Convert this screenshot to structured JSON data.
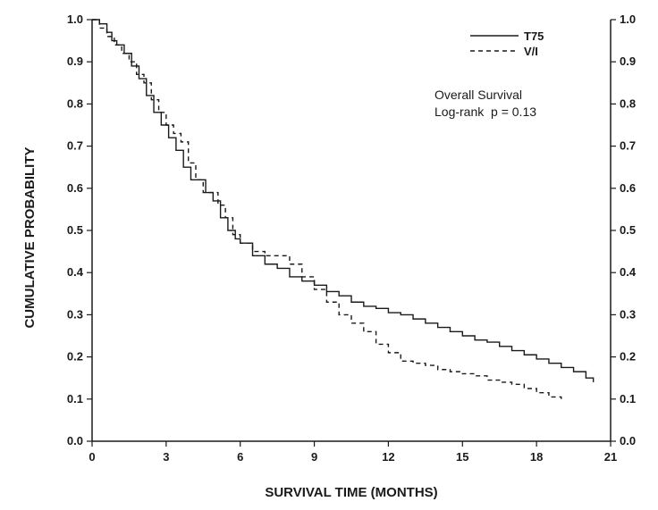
{
  "chart_data": {
    "type": "line",
    "title": "",
    "xlabel": "SURVIVAL TIME (MONTHS)",
    "ylabel": "CUMULATIVE PROBABILITY",
    "xlim": [
      0,
      21
    ],
    "ylim": [
      0,
      1.0
    ],
    "xticks": [
      "0",
      "3",
      "6",
      "9",
      "12",
      "15",
      "18",
      "21"
    ],
    "yticks": [
      "0.0",
      "0.1",
      "0.2",
      "0.3",
      "0.4",
      "0.5",
      "0.6",
      "0.7",
      "0.8",
      "0.9",
      "1.0"
    ],
    "grid": false,
    "legend_position": "top-right",
    "annotations": [
      "Overall Survival",
      "Log-rank  p = 0.13"
    ],
    "series": [
      {
        "name": "T75",
        "style": "solid",
        "x": [
          0,
          0.3,
          0.6,
          0.8,
          1.0,
          1.3,
          1.6,
          1.9,
          2.2,
          2.5,
          2.8,
          3.1,
          3.4,
          3.7,
          4.0,
          4.3,
          4.6,
          4.9,
          5.2,
          5.5,
          5.8,
          6.0,
          6.5,
          7.0,
          7.5,
          8.0,
          8.5,
          9.0,
          9.5,
          10.0,
          10.5,
          11.0,
          11.5,
          12.0,
          12.5,
          13.0,
          13.5,
          14.0,
          14.5,
          15.0,
          15.5,
          16.0,
          16.5,
          17.0,
          17.5,
          18.0,
          18.5,
          19.0,
          19.5,
          20.0,
          20.3
        ],
        "y": [
          1.0,
          0.99,
          0.97,
          0.95,
          0.94,
          0.92,
          0.89,
          0.86,
          0.82,
          0.78,
          0.75,
          0.72,
          0.69,
          0.65,
          0.62,
          0.62,
          0.59,
          0.57,
          0.53,
          0.5,
          0.48,
          0.47,
          0.44,
          0.42,
          0.41,
          0.39,
          0.38,
          0.37,
          0.355,
          0.345,
          0.33,
          0.32,
          0.315,
          0.305,
          0.3,
          0.29,
          0.28,
          0.27,
          0.26,
          0.25,
          0.24,
          0.235,
          0.225,
          0.215,
          0.205,
          0.195,
          0.185,
          0.175,
          0.165,
          0.15,
          0.14
        ]
      },
      {
        "name": "V/I",
        "style": "dashed",
        "x": [
          0,
          0.3,
          0.6,
          0.9,
          1.2,
          1.5,
          1.8,
          2.1,
          2.4,
          2.7,
          3.0,
          3.3,
          3.6,
          3.9,
          4.2,
          4.5,
          4.8,
          5.1,
          5.4,
          5.7,
          6.0,
          6.5,
          7.0,
          7.5,
          8.0,
          8.5,
          9.0,
          9.5,
          10.0,
          10.5,
          11.0,
          11.5,
          12.0,
          12.5,
          13.0,
          13.5,
          14.0,
          14.5,
          15.0,
          15.5,
          16.0,
          16.5,
          17.0,
          17.5,
          18.0,
          18.5,
          19.0
        ],
        "y": [
          1.0,
          0.98,
          0.96,
          0.94,
          0.92,
          0.9,
          0.87,
          0.85,
          0.81,
          0.78,
          0.75,
          0.73,
          0.71,
          0.66,
          0.62,
          0.59,
          0.59,
          0.56,
          0.53,
          0.49,
          0.47,
          0.45,
          0.44,
          0.44,
          0.42,
          0.39,
          0.36,
          0.33,
          0.3,
          0.28,
          0.26,
          0.23,
          0.21,
          0.19,
          0.185,
          0.18,
          0.17,
          0.165,
          0.16,
          0.155,
          0.145,
          0.14,
          0.135,
          0.125,
          0.115,
          0.105,
          0.1
        ]
      }
    ]
  }
}
